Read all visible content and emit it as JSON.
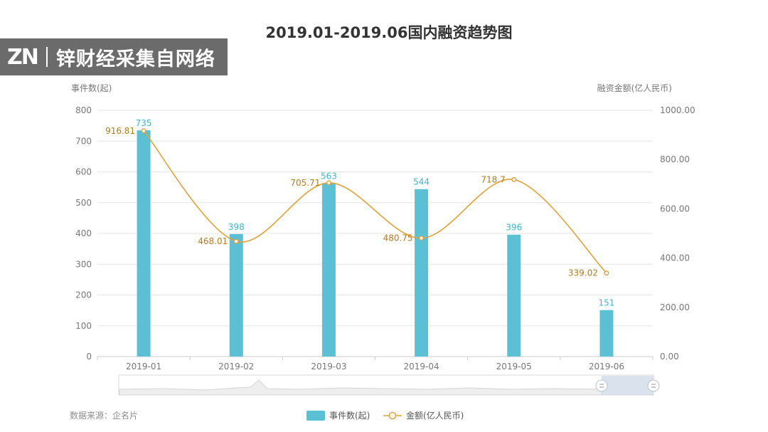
{
  "watermark": {
    "logo": "ZN",
    "text": "锌财经采集自网络"
  },
  "source_note": "数据来源：企名片",
  "colors": {
    "bar": "#5bc0d3",
    "line": "#dca23e",
    "bar_label": "#3fb3c9",
    "line_label": "#b47a1c",
    "axis_text": "#777777",
    "grid": "#e6e6e6"
  },
  "chart_data": {
    "type": "bar",
    "title": "2019.01-2019.06国内融资趋势图",
    "categories": [
      "2019-01",
      "2019-02",
      "2019-03",
      "2019-04",
      "2019-05",
      "2019-06"
    ],
    "series": [
      {
        "name": "事件数(起)",
        "type": "bar",
        "axis": "left",
        "values": [
          735,
          398,
          563,
          544,
          396,
          151
        ],
        "labels": [
          "735",
          "398",
          "563",
          "544",
          "396",
          "151"
        ]
      },
      {
        "name": "金额(亿人民币)",
        "type": "line",
        "axis": "right",
        "values": [
          916.81,
          468.01,
          705.71,
          480.75,
          718.7,
          339.02
        ],
        "labels": [
          "916.81",
          "468.01",
          "705.71",
          "480.75",
          "718.7",
          "339.02"
        ]
      }
    ],
    "ylabel": "事件数(起)",
    "y2label": "融资金额(亿人民币)",
    "ylim": [
      0,
      800
    ],
    "y2lim": [
      0,
      1000
    ],
    "yticks": [
      "0",
      "100",
      "200",
      "300",
      "400",
      "500",
      "600",
      "700",
      "800"
    ],
    "y2ticks": [
      "0.00",
      "200.00",
      "400.00",
      "600.00",
      "800.00",
      "1000.00"
    ],
    "grid": true,
    "legend_position": "bottom",
    "has_zoom_slider": true
  }
}
